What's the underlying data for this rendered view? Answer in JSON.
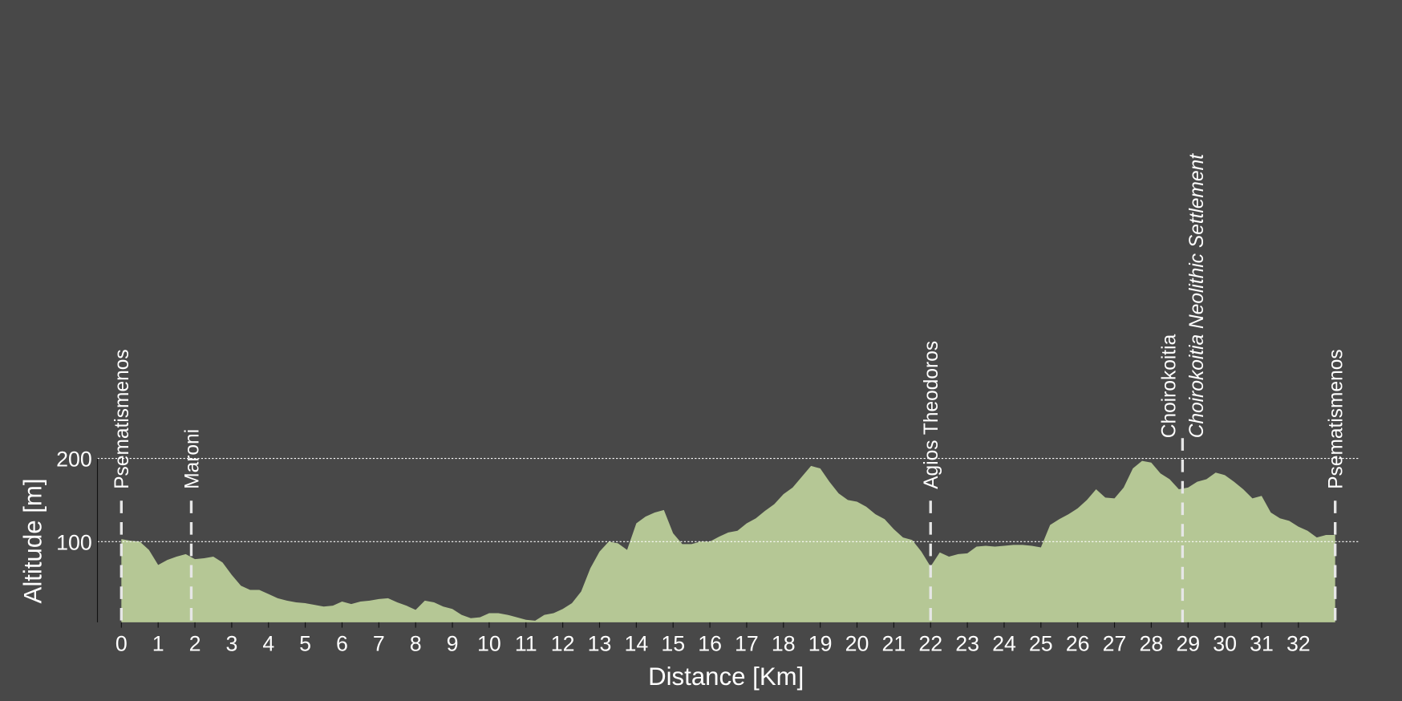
{
  "chart_data": {
    "type": "area",
    "x_label": "Distance [Km]",
    "y_label": "Altitude [m]",
    "x": [
      0,
      0.25,
      0.5,
      0.75,
      1,
      1.25,
      1.5,
      1.75,
      2,
      2.25,
      2.5,
      2.75,
      3,
      3.25,
      3.5,
      3.75,
      4,
      4.25,
      4.5,
      4.75,
      5,
      5.25,
      5.5,
      5.75,
      6,
      6.25,
      6.5,
      6.75,
      7,
      7.25,
      7.5,
      7.75,
      8,
      8.25,
      8.5,
      8.75,
      9,
      9.25,
      9.5,
      9.75,
      10,
      10.25,
      10.5,
      10.75,
      11,
      11.25,
      11.5,
      11.75,
      12,
      12.25,
      12.5,
      12.75,
      13,
      13.25,
      13.5,
      13.75,
      14,
      14.25,
      14.5,
      14.75,
      15,
      15.25,
      15.5,
      15.75,
      16,
      16.25,
      16.5,
      16.75,
      17,
      17.25,
      17.5,
      17.75,
      18,
      18.25,
      18.5,
      18.75,
      19,
      19.25,
      19.5,
      19.75,
      20,
      20.25,
      20.5,
      20.75,
      21,
      21.25,
      21.5,
      21.75,
      22,
      22.25,
      22.5,
      22.75,
      23,
      23.25,
      23.5,
      23.75,
      24,
      24.25,
      24.5,
      24.75,
      25,
      25.25,
      25.5,
      25.75,
      26,
      26.25,
      26.5,
      26.75,
      27,
      27.25,
      27.5,
      27.75,
      28,
      28.25,
      28.5,
      28.75,
      29,
      29.25,
      29.5,
      29.75,
      30,
      30.25,
      30.5,
      30.75,
      31,
      31.25,
      31.5,
      31.75,
      32,
      32.25,
      32.5,
      32.75,
      33
    ],
    "values": [
      103,
      101,
      100,
      90,
      72,
      78,
      82,
      85,
      79,
      80,
      82,
      75,
      60,
      47,
      42,
      42,
      37,
      32,
      29,
      27,
      26,
      24,
      22,
      23,
      28,
      25,
      28,
      29,
      31,
      32,
      27,
      23,
      18,
      29,
      27,
      22,
      19,
      12,
      8,
      9,
      14,
      14,
      12,
      9,
      6,
      5,
      12,
      14,
      19,
      26,
      40,
      68,
      88,
      100,
      98,
      90,
      122,
      130,
      135,
      138,
      110,
      97,
      97,
      100,
      100,
      106,
      111,
      113,
      122,
      128,
      137,
      145,
      157,
      165,
      178,
      191,
      188,
      172,
      158,
      150,
      148,
      142,
      133,
      127,
      115,
      105,
      102,
      88,
      70,
      87,
      82,
      85,
      86,
      94,
      95,
      94,
      95,
      96,
      96,
      95,
      93,
      120,
      127,
      133,
      140,
      150,
      163,
      153,
      152,
      165,
      188,
      197,
      195,
      182,
      175,
      163,
      165,
      172,
      175,
      183,
      180,
      172,
      163,
      152,
      155,
      135,
      128,
      125,
      118,
      113,
      105,
      108,
      108
    ],
    "color": "#b5c795",
    "xlim": [
      -0.65,
      33.65
    ],
    "xticks": [
      0,
      1,
      2,
      3,
      4,
      5,
      6,
      7,
      8,
      9,
      10,
      11,
      12,
      13,
      14,
      15,
      16,
      17,
      18,
      19,
      20,
      21,
      22,
      23,
      24,
      25,
      26,
      27,
      28,
      29,
      30,
      31,
      32
    ],
    "ylim": [
      3,
      750
    ],
    "yticks": [
      100,
      200
    ],
    "grid": true,
    "annotations": [
      {
        "x": 0,
        "label": "Psematismenos"
      },
      {
        "x": 1.9,
        "label": "Maroni"
      },
      {
        "x": 22,
        "label": "Agios Theodoros"
      },
      {
        "x": 28.85,
        "label": "Choirokoitia"
      },
      {
        "x": 28.85,
        "label": "Choirokoitia Neolithic Settlement",
        "italic": true
      },
      {
        "x": 33,
        "label": "Psematismenos"
      }
    ]
  }
}
